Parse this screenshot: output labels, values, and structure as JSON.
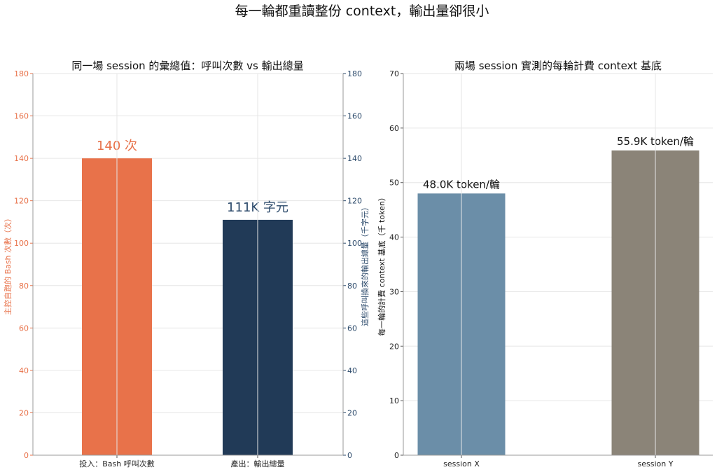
{
  "suptitle": "每一輪都重讀整份 context，輸出量卻很小",
  "colors": {
    "left_axis": "#e8724a",
    "right_axis": "#2c4a6b",
    "bash_bar": "#e8724a",
    "output_bar": "#213a57",
    "session_x_bar": "#6b8ea8",
    "session_y_bar": "#8b8478",
    "grid": "#e6e6e6",
    "spine": "#999999"
  },
  "chart_data": [
    {
      "type": "bar",
      "title": "同一場 session 的彙總值：呼叫次數 vs 輸出總量",
      "categories": [
        "投入：Bash 呼叫次數",
        "產出：輸出總量"
      ],
      "series": [
        {
          "values": [
            140,
            111
          ],
          "axes": [
            "left",
            "right"
          ]
        }
      ],
      "data_labels": [
        "140 次",
        "111K 字元"
      ],
      "ylabel_left": "主控自跑的 Bash 次數（次）",
      "ylabel_right": "這些呼叫換來的輸出總量（千字元）",
      "ylim_left": [
        0,
        180
      ],
      "ylim_right": [
        0,
        180
      ],
      "yticks": [
        0,
        20,
        40,
        60,
        80,
        100,
        120,
        140,
        160,
        180
      ],
      "grid": true
    },
    {
      "type": "bar",
      "title": "兩場 session 實測的每輪計費 context 基底",
      "categories": [
        "session X",
        "session Y"
      ],
      "series": [
        {
          "values": [
            48.0,
            55.9
          ]
        }
      ],
      "data_labels": [
        "48.0K token/輪",
        "55.9K token/輪"
      ],
      "ylabel": "每一輪的計費 context 基底（千 token）",
      "ylim": [
        0,
        70
      ],
      "yticks": [
        0,
        10,
        20,
        30,
        40,
        50,
        60,
        70
      ],
      "grid": true
    }
  ]
}
